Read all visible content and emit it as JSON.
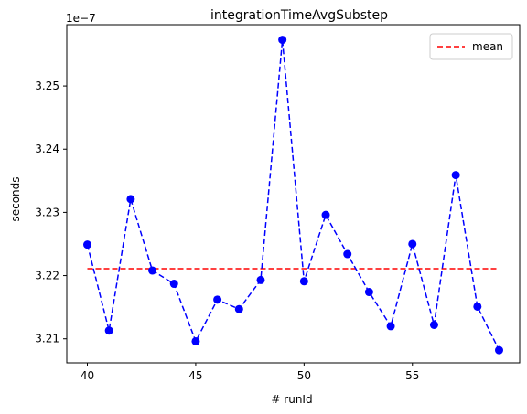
{
  "chart_data": {
    "type": "line",
    "title": "integrationTimeAvgSubstep",
    "xlabel": "# runId",
    "ylabel": "seconds",
    "y_offset_label": "1e−7",
    "x": [
      40,
      41,
      42,
      43,
      44,
      45,
      46,
      47,
      48,
      49,
      50,
      51,
      52,
      53,
      54,
      55,
      56,
      57,
      58,
      59
    ],
    "series": [
      {
        "name": "",
        "style": "dashed-line-with-circles",
        "color": "#0000ff",
        "values": [
          3.2249,
          3.2113,
          3.2321,
          3.2208,
          3.2187,
          3.2096,
          3.2162,
          3.2147,
          3.2193,
          3.2573,
          3.2191,
          3.2296,
          3.2234,
          3.2174,
          3.212,
          3.225,
          3.2122,
          3.2359,
          3.2151,
          3.2082
        ]
      },
      {
        "name": "mean",
        "style": "dashed-line",
        "color": "#ff0000",
        "values": [
          3.2211,
          3.2211,
          3.2211,
          3.2211,
          3.2211,
          3.2211,
          3.2211,
          3.2211,
          3.2211,
          3.2211,
          3.2211,
          3.2211,
          3.2211,
          3.2211,
          3.2211,
          3.2211,
          3.2211,
          3.2211,
          3.2211,
          3.2211
        ]
      }
    ],
    "xlim": [
      39.05,
      59.95
    ],
    "ylim": [
      3.2062,
      3.2597
    ],
    "xticks": [
      40,
      45,
      50,
      55
    ],
    "xtick_labels": [
      "40",
      "45",
      "50",
      "55"
    ],
    "yticks": [
      3.21,
      3.22,
      3.23,
      3.24,
      3.25
    ],
    "ytick_labels": [
      "3.21",
      "3.22",
      "3.23",
      "3.24",
      "3.25"
    ],
    "grid": false,
    "legend_position": "top-right"
  }
}
